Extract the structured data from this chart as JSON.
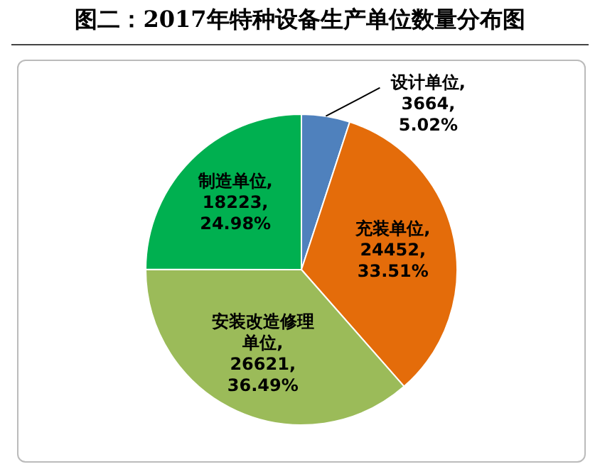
{
  "chart_data": {
    "type": "pie",
    "title": "图二：2017年特种设备生产单位数量分布图",
    "categories": [
      "设计单位",
      "充装单位",
      "安装改造修理单位",
      "制造单位"
    ],
    "values": [
      3664,
      24452,
      26621,
      18223
    ],
    "colors": [
      "#4f81bd",
      "#e46c0a",
      "#9bbb59",
      "#00b050"
    ],
    "value_labels": [
      ", 3664, 5.02%",
      ", 24452, 33.51%",
      ", 26621, 36.49%",
      ", 18223, 24.98%"
    ],
    "legend": false
  }
}
